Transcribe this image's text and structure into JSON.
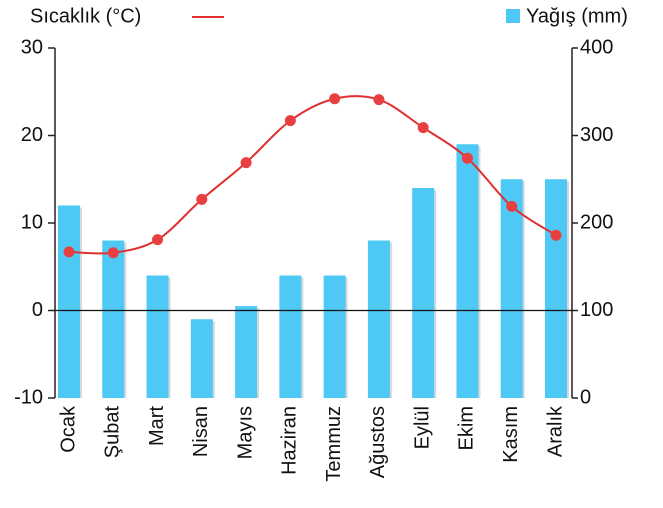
{
  "chart_data": {
    "type": "combo",
    "categories": [
      "Ocak",
      "Şubat",
      "Mart",
      "Nisan",
      "Mayıs",
      "Haziran",
      "Temmuz",
      "Ağustos",
      "Eylül",
      "Ekim",
      "Kasım",
      "Aralık"
    ],
    "series": [
      {
        "name": "Yağış (mm)",
        "type": "bar",
        "axis": "y2",
        "color": "#4ec8f4",
        "values": [
          220,
          180,
          140,
          90,
          105,
          140,
          140,
          180,
          240,
          290,
          250,
          250
        ]
      },
      {
        "name": "Sıcaklık (°C)",
        "type": "line",
        "axis": "y",
        "color": "#e03030",
        "values": [
          6.7,
          6.6,
          8.1,
          12.7,
          16.9,
          21.7,
          24.2,
          24.1,
          20.9,
          17.4,
          11.9,
          8.6
        ]
      }
    ],
    "ylim": [
      -10,
      30
    ],
    "yticks": [
      -10,
      0,
      10,
      20,
      30
    ],
    "y2lim": [
      0,
      400
    ],
    "y2ticks": [
      0,
      100,
      200,
      300,
      400
    ]
  }
}
